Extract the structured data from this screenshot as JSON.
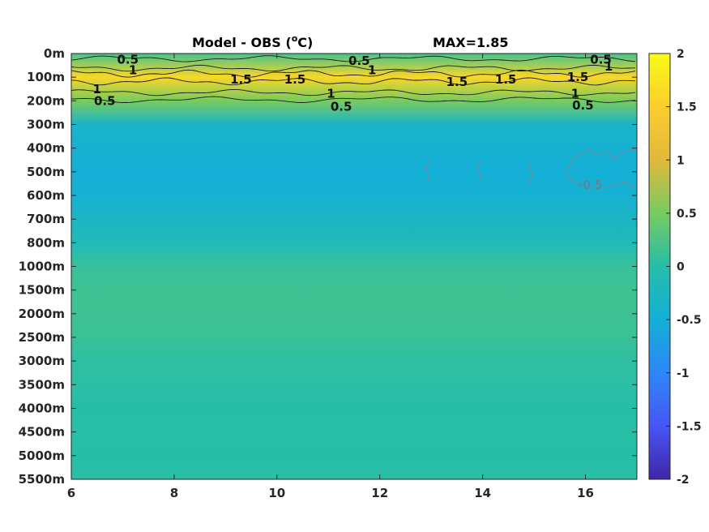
{
  "chart_data": {
    "type": "heatmap",
    "title": "Model - OBS (",
    "title_superscript": "o",
    "title_unit": "C)",
    "max_text": "MAX=1.85",
    "x_ticks": [
      "6",
      "8",
      "10",
      "12",
      "14",
      "16"
    ],
    "x_tick_values": [
      6,
      8,
      10,
      12,
      14,
      16
    ],
    "xlim": [
      6,
      17
    ],
    "y_ticks": [
      "0m",
      "100m",
      "200m",
      "300m",
      "400m",
      "500m",
      "600m",
      "700m",
      "800m",
      "1000m",
      "1500m",
      "2000m",
      "2500m",
      "3000m",
      "3500m",
      "4000m",
      "4500m",
      "5000m",
      "5500m"
    ],
    "colorbar_ticks": [
      "2",
      "1.5",
      "1",
      "0.5",
      "0",
      "-0.5",
      "-1",
      "-1.5",
      "-2"
    ],
    "colorbar_values": [
      2,
      1.5,
      1,
      0.5,
      0,
      -0.5,
      -1,
      -1.5,
      -2
    ],
    "clim": [
      -2,
      2
    ],
    "colormap": "parula",
    "max": 1.85,
    "depth_profile": [
      {
        "depth": "0m",
        "value": 0.2
      },
      {
        "depth": "100m",
        "value": 1.6
      },
      {
        "depth": "200m",
        "value": 0.5
      },
      {
        "depth": "300m",
        "value": -0.35
      },
      {
        "depth": "400m",
        "value": -0.45
      },
      {
        "depth": "500m",
        "value": -0.5
      },
      {
        "depth": "600m",
        "value": -0.45
      },
      {
        "depth": "700m",
        "value": -0.3
      },
      {
        "depth": "800m",
        "value": -0.15
      },
      {
        "depth": "1000m",
        "value": 0.1
      },
      {
        "depth": "1500m",
        "value": 0.15
      },
      {
        "depth": "2000m",
        "value": 0.15
      },
      {
        "depth": "2500m",
        "value": 0.12
      },
      {
        "depth": "3000m",
        "value": 0.05
      },
      {
        "depth": "3500m",
        "value": 0.03
      },
      {
        "depth": "4000m",
        "value": 0.0
      },
      {
        "depth": "4500m",
        "value": 0.02
      },
      {
        "depth": "5000m",
        "value": 0.0
      },
      {
        "depth": "5500m",
        "value": 0.02
      }
    ],
    "contour_labels": [
      {
        "text": "0.5",
        "x": 7.1,
        "depth": "0m",
        "depth_offset": 0.25
      },
      {
        "text": "1",
        "x": 7.2,
        "depth": "0m",
        "depth_offset": 0.7
      },
      {
        "text": "1",
        "x": 6.5,
        "depth": "100m",
        "depth_offset": 0.5
      },
      {
        "text": "0.5",
        "x": 6.65,
        "depth": "200m",
        "depth_offset": 0.0
      },
      {
        "text": "1.5",
        "x": 9.3,
        "depth": "100m",
        "depth_offset": 0.1
      },
      {
        "text": "1.5",
        "x": 10.35,
        "depth": "100m",
        "depth_offset": 0.1
      },
      {
        "text": "0.5",
        "x": 11.6,
        "depth": "0m",
        "depth_offset": 0.3
      },
      {
        "text": "1",
        "x": 11.85,
        "depth": "0m",
        "depth_offset": 0.7
      },
      {
        "text": "1",
        "x": 11.05,
        "depth": "100m",
        "depth_offset": 0.7
      },
      {
        "text": "0.5",
        "x": 11.25,
        "depth": "200m",
        "depth_offset": 0.25
      },
      {
        "text": "1.5",
        "x": 13.5,
        "depth": "100m",
        "depth_offset": 0.2
      },
      {
        "text": "1.5",
        "x": 14.45,
        "depth": "100m",
        "depth_offset": 0.1
      },
      {
        "text": "0.5",
        "x": 16.3,
        "depth": "0m",
        "depth_offset": 0.25
      },
      {
        "text": "1",
        "x": 16.45,
        "depth": "0m",
        "depth_offset": 0.55
      },
      {
        "text": "1.5",
        "x": 15.85,
        "depth": "100m",
        "depth_offset": 0.0
      },
      {
        "text": "1",
        "x": 15.8,
        "depth": "100m",
        "depth_offset": 0.7
      },
      {
        "text": "0.5",
        "x": 15.95,
        "depth": "200m",
        "depth_offset": 0.2
      },
      {
        "text": "-0.5",
        "x": 16.1,
        "depth": "500m",
        "depth_offset": 0.55
      }
    ]
  }
}
